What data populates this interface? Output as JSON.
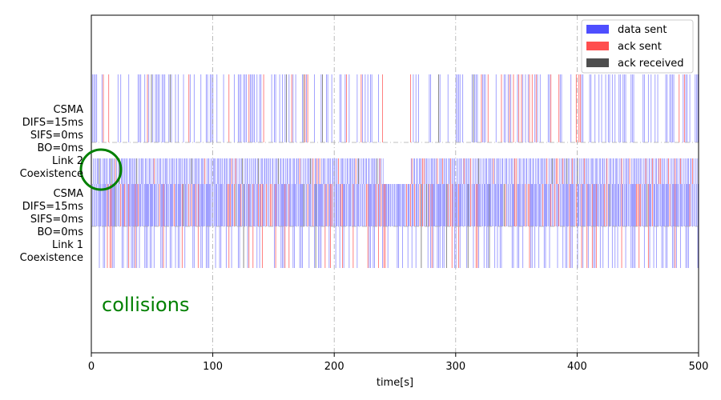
{
  "chart_data": {
    "type": "timeline",
    "xlabel": "time[s]",
    "xlim": [
      0,
      500
    ],
    "x_ticks": [
      0,
      100,
      200,
      300,
      400,
      500
    ],
    "grid": "x-dashdot",
    "legend": {
      "placement": "top-right",
      "entries": [
        {
          "name": "data sent",
          "color": "#4444ff"
        },
        {
          "name": "ack sent",
          "color": "#ff4444"
        },
        {
          "name": "ack received",
          "color": "#444444"
        }
      ]
    },
    "rows": [
      {
        "label_lines": [
          "CSMA",
          "DIFS=15ms",
          "SIFS=0ms",
          "BO=0ms",
          "Link 2",
          "Coexistence"
        ],
        "dense_band_s": [
          [
            0,
            500
          ]
        ],
        "gaps_s": [
          [
            240,
            262
          ]
        ]
      },
      {
        "label_lines": [
          "CSMA",
          "DIFS=15ms",
          "SIFS=0ms",
          "BO=0ms",
          "Link 1",
          "Coexistence"
        ],
        "dense_band_s": [
          [
            0,
            500
          ]
        ],
        "gaps_s": []
      }
    ],
    "annotation": {
      "text": "collisions",
      "color": "#008000",
      "marker": "circle",
      "x": 8
    }
  }
}
